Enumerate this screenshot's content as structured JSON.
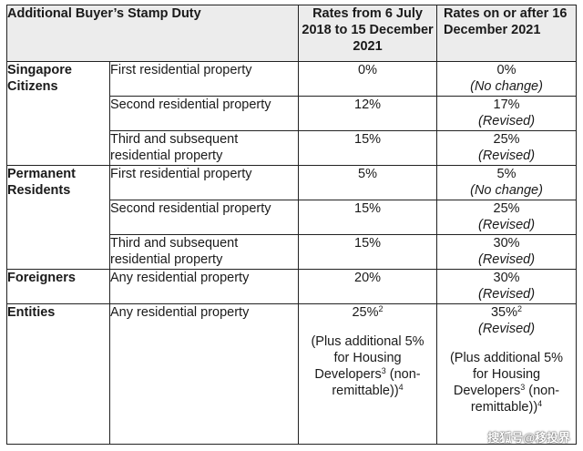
{
  "table": {
    "header": {
      "title": "Additional Buyer’s Stamp Duty",
      "col_old": "Rates from 6 July 2018 to 15 December 2021",
      "col_new": "Rates on or after 16 December 2021"
    },
    "groups": {
      "citizens": {
        "label": "Singapore Citizens",
        "rows": [
          {
            "type": "First residential property",
            "old": "0%",
            "new": "0%",
            "note": "(No change)"
          },
          {
            "type": "Second residential property",
            "old": "12%",
            "new": "17%",
            "note": "(Revised)"
          },
          {
            "type": "Third and subsequent residential property",
            "old": "15%",
            "new": "25%",
            "note": "(Revised)"
          }
        ]
      },
      "pr": {
        "label": "Permanent Residents",
        "rows": [
          {
            "type": "First residential property",
            "old": "5%",
            "new": "5%",
            "note": "(No change)"
          },
          {
            "type": "Second residential property",
            "old": "15%",
            "new": "25%",
            "note": "(Revised)"
          },
          {
            "type": "Third and subsequent residential property",
            "old": "15%",
            "new": "30%",
            "note": "(Revised)"
          }
        ]
      },
      "foreigners": {
        "label": "Foreigners",
        "rows": [
          {
            "type": "Any residential property",
            "old": "20%",
            "new": "30%",
            "note": "(Revised)"
          }
        ]
      },
      "entities": {
        "label": "Entities",
        "rows": [
          {
            "type": "Any residential property",
            "old": "25%",
            "old_sup": "2",
            "new": "35%",
            "new_sup": "2",
            "note": "(Revised)"
          }
        ],
        "extra_line1": "(Plus additional 5% for Housing Developers",
        "extra_sup1": "3",
        "extra_line2": " (non-remittable)",
        "extra_sup2": "4",
        "extra_close": ")"
      }
    }
  },
  "watermark": "搜狐号@移投界"
}
